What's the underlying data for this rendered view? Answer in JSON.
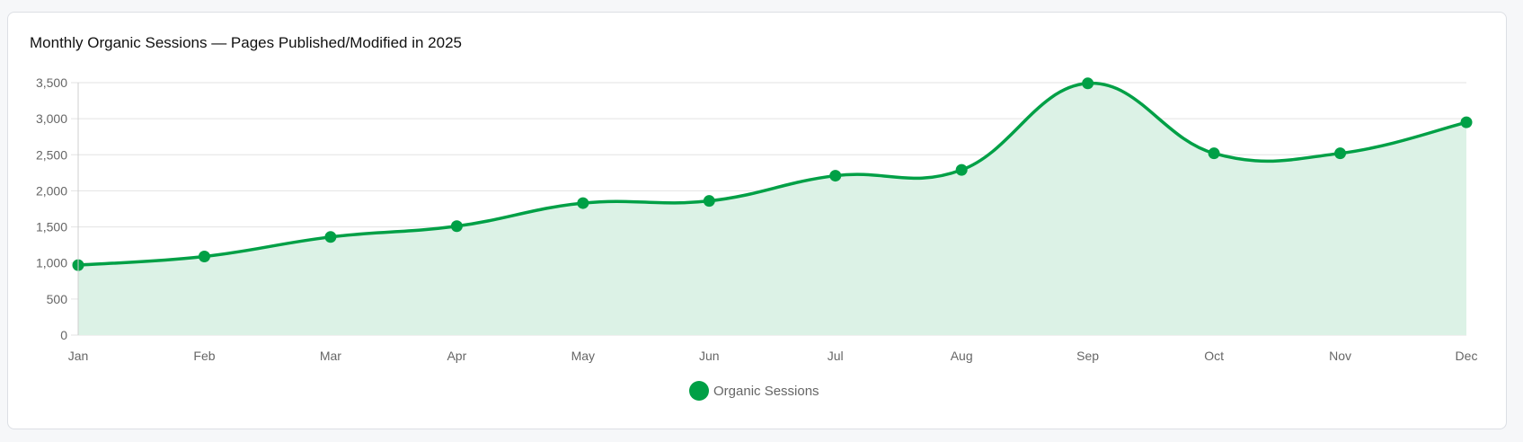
{
  "chart_data": {
    "type": "area",
    "title": "Monthly Organic Sessions — Pages Published/Modified in 2025",
    "xlabel": "",
    "ylabel": "",
    "categories": [
      "Jan",
      "Feb",
      "Mar",
      "Apr",
      "May",
      "Jun",
      "Jul",
      "Aug",
      "Sep",
      "Oct",
      "Nov",
      "Dec"
    ],
    "series": [
      {
        "name": "Organic Sessions",
        "values": [
          970,
          1090,
          1360,
          1510,
          1830,
          1860,
          2210,
          2290,
          3490,
          2520,
          2520,
          2950
        ]
      }
    ],
    "ylim": [
      0,
      3500
    ],
    "yticks": [
      0,
      500,
      1000,
      1500,
      2000,
      2500,
      3000,
      3500
    ],
    "ytick_labels": [
      "0",
      "500",
      "1,000",
      "1,500",
      "2,000",
      "2,500",
      "3,000",
      "3,500"
    ],
    "grid": true,
    "legend": "bottom-center",
    "colors": {
      "line": "#00a046",
      "fill": "#dcf2e6",
      "grid": "#e3e3e3"
    }
  }
}
